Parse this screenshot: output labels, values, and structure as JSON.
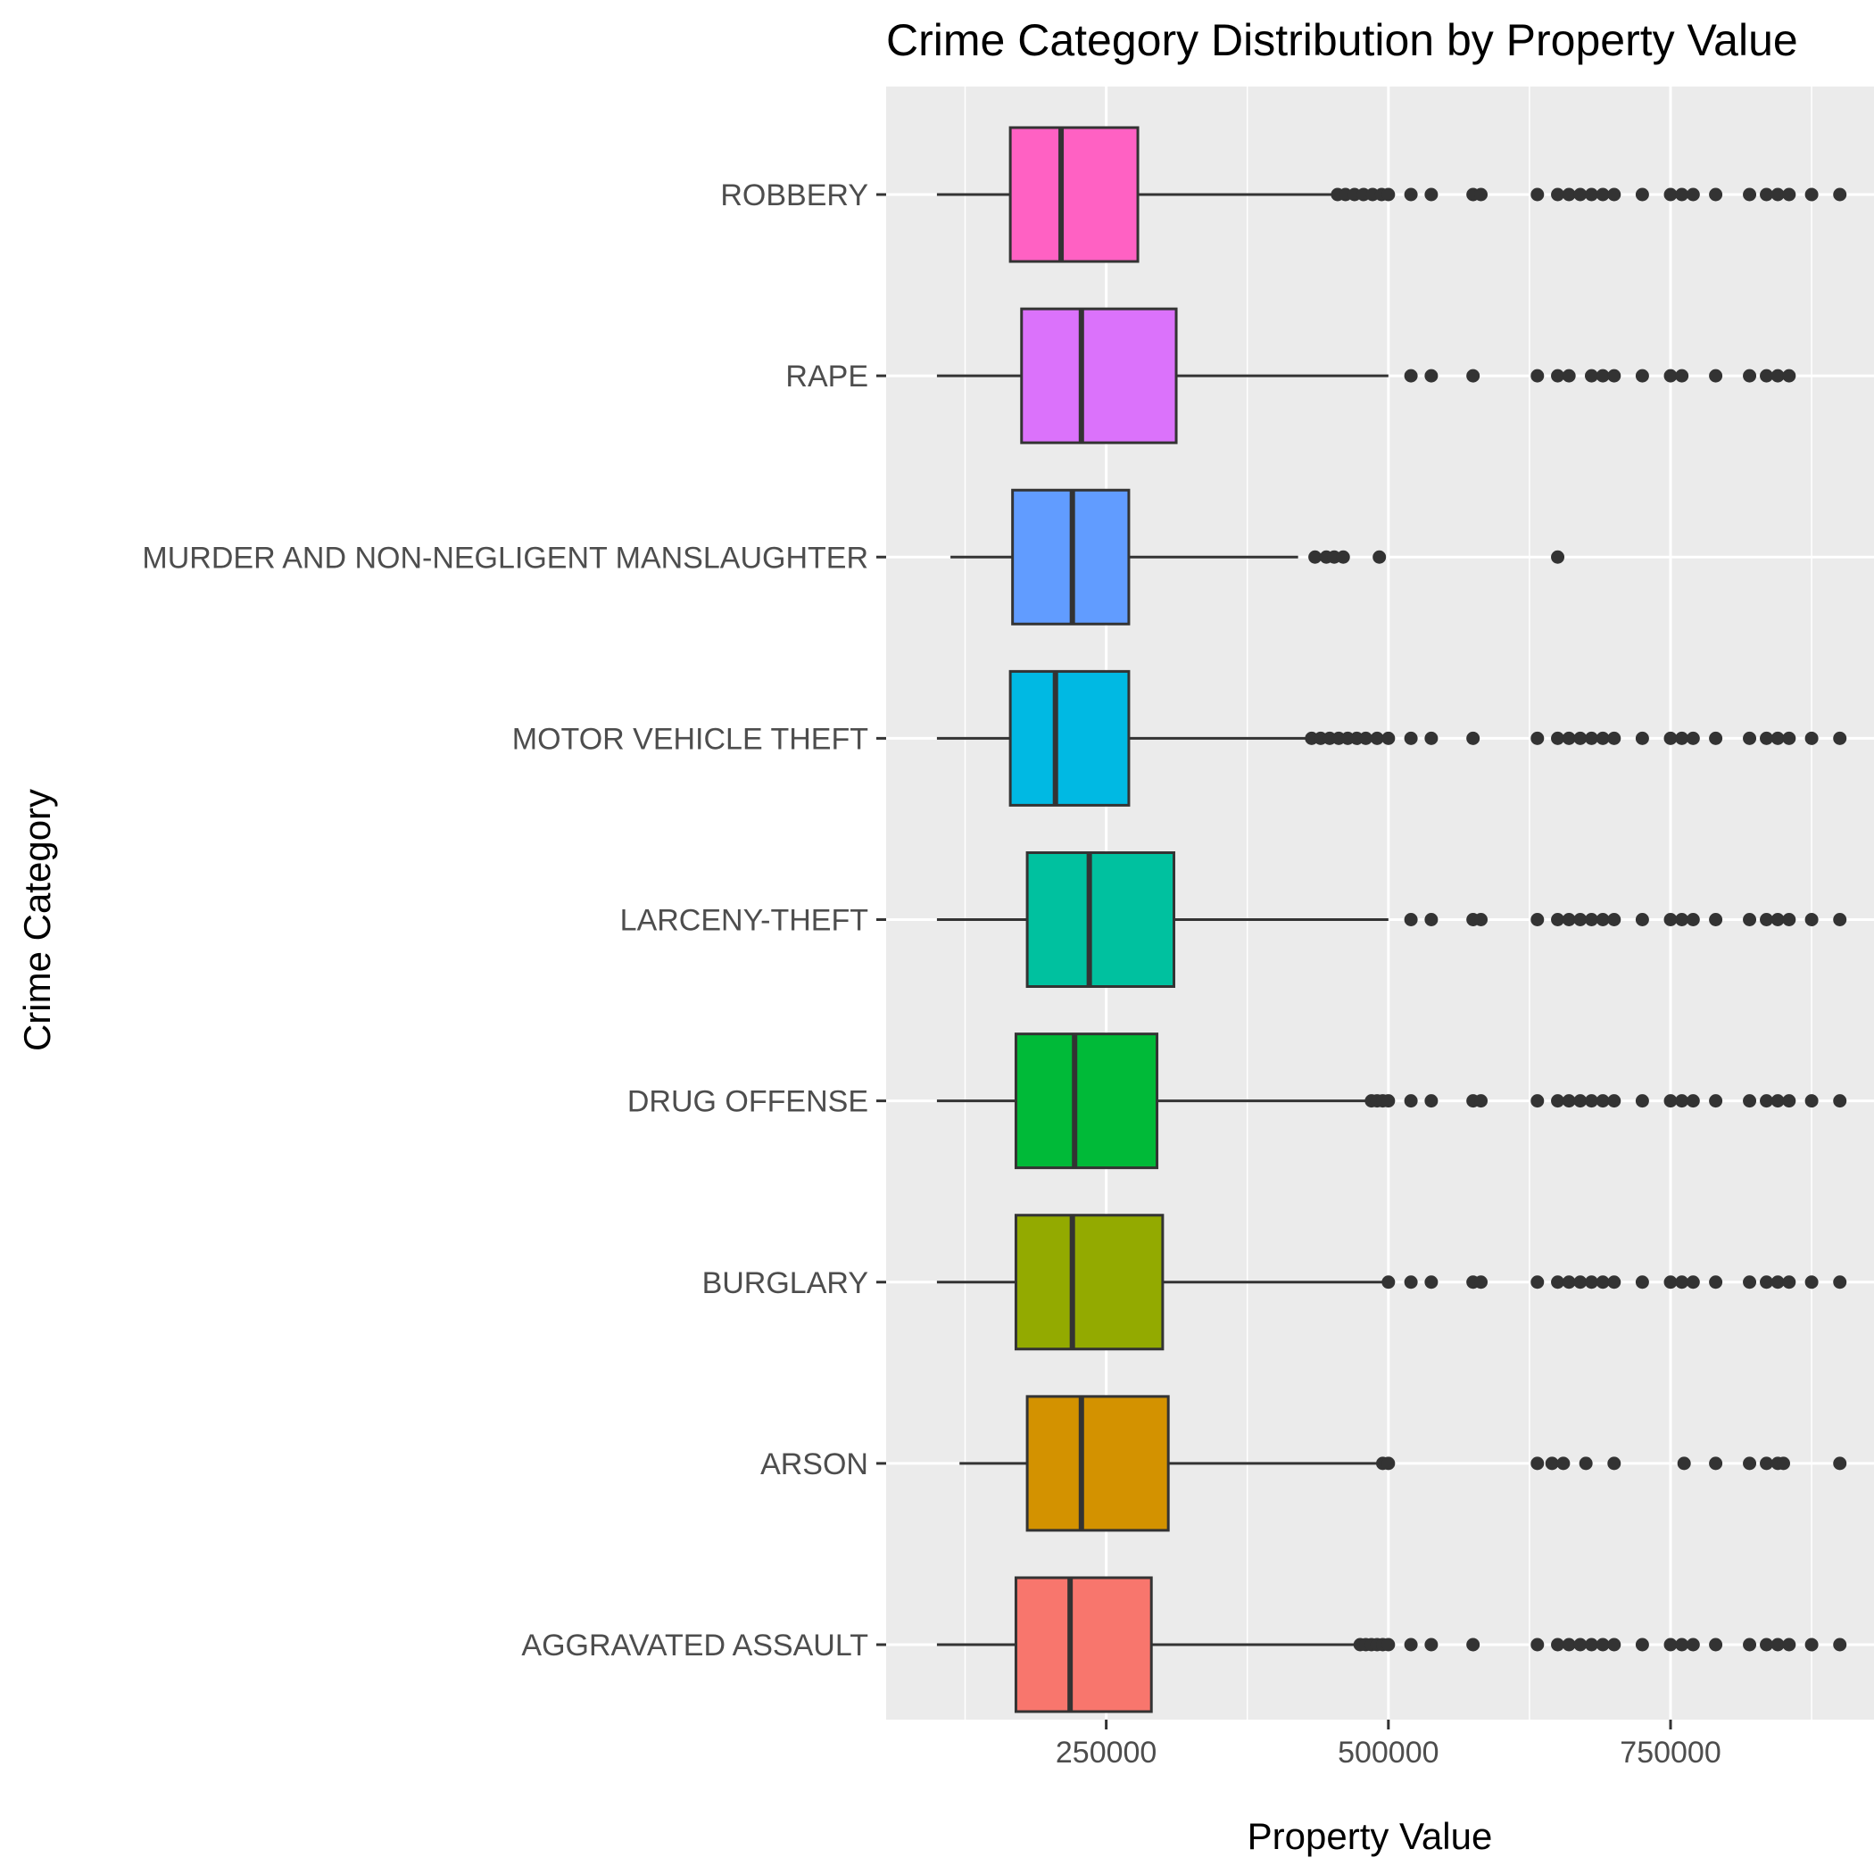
{
  "chart_data": {
    "type": "boxplot",
    "orientation": "horizontal",
    "title": "Crime Category Distribution by Property Value",
    "xlabel": "Property Value",
    "ylabel": "Crime Category",
    "xlim": [
      55000,
      935000
    ],
    "x_ticks": [
      250000,
      500000,
      750000
    ],
    "x_tick_labels": [
      "250000",
      "500000",
      "750000"
    ],
    "grid": true,
    "legend": "none",
    "categories": [
      "AGGRAVATED ASSAULT",
      "ARSON",
      "BURGLARY",
      "DRUG OFFENSE",
      "LARCENY-THEFT",
      "MOTOR VEHICLE THEFT",
      "MURDER AND NON-NEGLIGENT MANSLAUGHTER",
      "RAPE",
      "ROBBERY"
    ],
    "colors": [
      "#F8766D",
      "#D39200",
      "#93AA00",
      "#00BA38",
      "#00C19F",
      "#00B9E3",
      "#619CFF",
      "#DB72FB",
      "#FF61C3"
    ],
    "boxes": [
      {
        "category": "AGGRAVATED ASSAULT",
        "whisker_low": 100000,
        "q1": 170000,
        "median": 218000,
        "q3": 290000,
        "whisker_high": 470000,
        "outliers": [
          475000,
          480000,
          485000,
          490000,
          495000,
          500000,
          520000,
          538000,
          575000,
          632000,
          650000,
          660000,
          670000,
          680000,
          690000,
          700000,
          725000,
          750000,
          760000,
          770000,
          790000,
          820000,
          835000,
          845000,
          855000,
          875000,
          900000
        ]
      },
      {
        "category": "ARSON",
        "whisker_low": 120000,
        "q1": 180000,
        "median": 228000,
        "q3": 305000,
        "whisker_high": 490000,
        "outliers": [
          495000,
          500000,
          632000,
          645000,
          655000,
          675000,
          700000,
          762000,
          790000,
          820000,
          835000,
          845000,
          850000,
          900000
        ]
      },
      {
        "category": "BURGLARY",
        "whisker_low": 100000,
        "q1": 170000,
        "median": 220000,
        "q3": 300000,
        "whisker_high": 495000,
        "outliers": [
          500000,
          520000,
          538000,
          575000,
          582000,
          632000,
          650000,
          660000,
          670000,
          680000,
          690000,
          700000,
          725000,
          750000,
          760000,
          770000,
          790000,
          820000,
          835000,
          845000,
          855000,
          875000,
          900000
        ]
      },
      {
        "category": "DRUG OFFENSE",
        "whisker_low": 100000,
        "q1": 170000,
        "median": 222000,
        "q3": 295000,
        "whisker_high": 480000,
        "outliers": [
          485000,
          490000,
          495000,
          500000,
          520000,
          538000,
          575000,
          582000,
          632000,
          650000,
          660000,
          670000,
          680000,
          690000,
          700000,
          725000,
          750000,
          760000,
          770000,
          790000,
          820000,
          835000,
          845000,
          855000,
          875000,
          900000
        ]
      },
      {
        "category": "LARCENY-THEFT",
        "whisker_low": 100000,
        "q1": 180000,
        "median": 235000,
        "q3": 310000,
        "whisker_high": 500000,
        "outliers": [
          520000,
          538000,
          575000,
          582000,
          632000,
          650000,
          660000,
          670000,
          680000,
          690000,
          700000,
          725000,
          750000,
          760000,
          770000,
          790000,
          820000,
          835000,
          845000,
          855000,
          875000,
          900000
        ]
      },
      {
        "category": "MOTOR VEHICLE THEFT",
        "whisker_low": 100000,
        "q1": 165000,
        "median": 205000,
        "q3": 270000,
        "whisker_high": 428000,
        "outliers": [
          432000,
          440000,
          448000,
          456000,
          464000,
          472000,
          480000,
          490000,
          500000,
          520000,
          538000,
          575000,
          632000,
          650000,
          660000,
          670000,
          680000,
          690000,
          700000,
          725000,
          750000,
          760000,
          770000,
          790000,
          820000,
          835000,
          845000,
          855000,
          875000,
          900000
        ]
      },
      {
        "category": "MURDER AND NON-NEGLIGENT MANSLAUGHTER",
        "whisker_low": 112000,
        "q1": 167000,
        "median": 220000,
        "q3": 270000,
        "whisker_high": 420000,
        "outliers": [
          435000,
          445000,
          452000,
          460000,
          492000,
          650000
        ]
      },
      {
        "category": "RAPE",
        "whisker_low": 100000,
        "q1": 175000,
        "median": 228000,
        "q3": 312000,
        "whisker_high": 500000,
        "outliers": [
          520000,
          538000,
          575000,
          632000,
          650000,
          660000,
          680000,
          690000,
          700000,
          725000,
          750000,
          760000,
          790000,
          820000,
          835000,
          845000,
          855000
        ]
      },
      {
        "category": "ROBBERY",
        "whisker_low": 100000,
        "q1": 165000,
        "median": 210000,
        "q3": 278000,
        "whisker_high": 450000,
        "outliers": [
          455000,
          462000,
          470000,
          478000,
          486000,
          494000,
          500000,
          520000,
          538000,
          575000,
          582000,
          632000,
          650000,
          660000,
          670000,
          680000,
          690000,
          700000,
          725000,
          750000,
          760000,
          770000,
          790000,
          820000,
          835000,
          845000,
          855000,
          875000,
          900000
        ]
      }
    ]
  }
}
